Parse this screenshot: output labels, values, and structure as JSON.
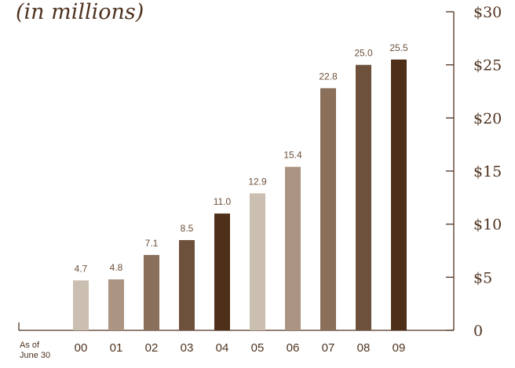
{
  "chart_data": {
    "type": "bar",
    "subtitle": "(in millions)",
    "categories": [
      "00",
      "01",
      "02",
      "03",
      "04",
      "05",
      "06",
      "07",
      "08",
      "09"
    ],
    "values": [
      4.7,
      4.8,
      7.1,
      8.5,
      11.0,
      12.9,
      15.4,
      22.8,
      25.0,
      25.5
    ],
    "data_labels": [
      "4.7",
      "4.8",
      "7.1",
      "8.5",
      "11.0",
      "12.9",
      "15.4",
      "22.8",
      "25.0",
      "25.5"
    ],
    "x_note": [
      "As of",
      "June 30"
    ],
    "ylim": [
      0,
      30
    ],
    "yticks": [
      0,
      5,
      10,
      15,
      20,
      25,
      30
    ],
    "ytick_labels": [
      "0",
      "$5",
      "$10",
      "$15",
      "$20",
      "$25",
      "$30"
    ],
    "y_axis_side": "right",
    "grid": false,
    "legend": "none",
    "bar_colors": [
      "#cbbfb1",
      "#ab9482",
      "#8a6f5a",
      "#6e513c",
      "#4e301a",
      "#cbbfb1",
      "#ab9482",
      "#8a6f5a",
      "#6e513c",
      "#4e301a"
    ],
    "axis_color": "#4f3320"
  }
}
